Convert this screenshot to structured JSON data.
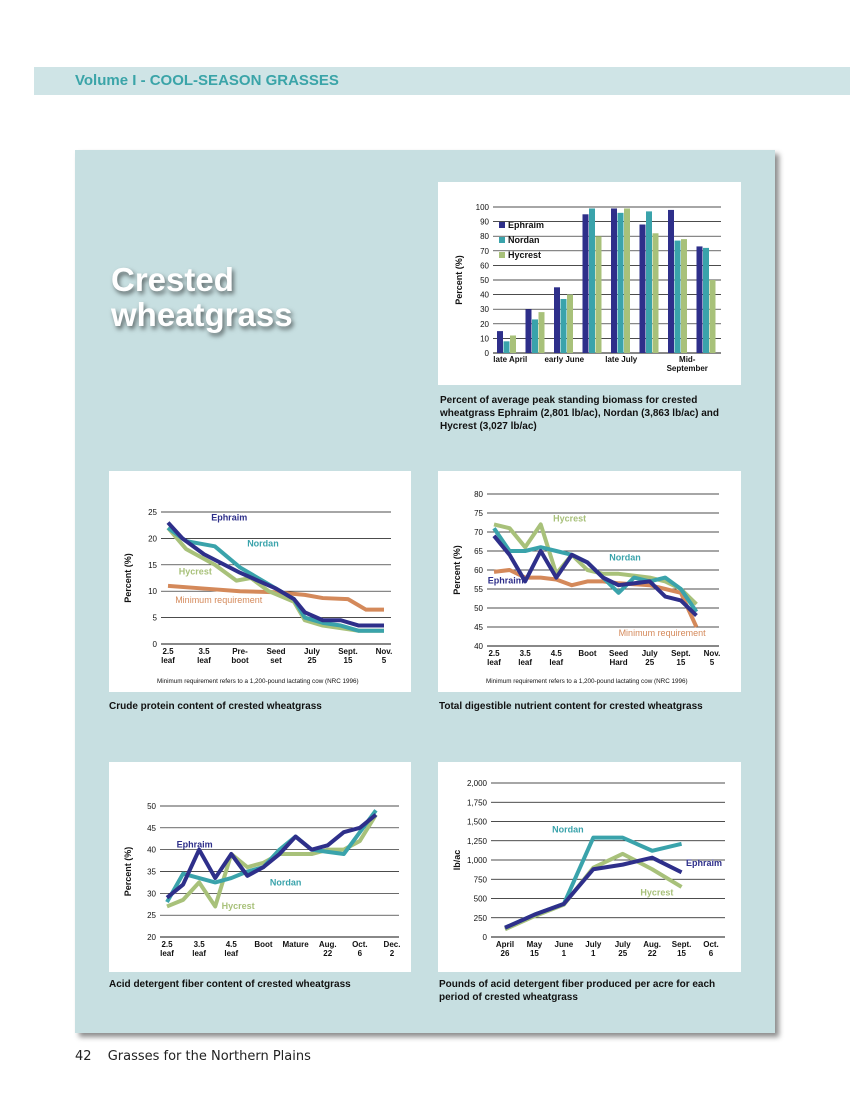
{
  "header": {
    "title": "Volume I - COOL-SEASON GRASSES"
  },
  "panel": {
    "title_line1": "Crested",
    "title_line2": "wheatgrass"
  },
  "footer": {
    "page": "42",
    "book": "Grasses for the Northern Plains"
  },
  "colors": {
    "ephraim": "#2e2f8a",
    "nordan": "#3aa3ab",
    "hycrest": "#a8c17a",
    "minimum": "#d4895a"
  },
  "charts": {
    "biomass": {
      "caption": "Percent of average peak standing biomass for crested wheatgrass Ephraim (2,801 lb/ac), Nordan (3,863 lb/ac) and Hycrest (3,027 lb/ac)"
    },
    "protein": {
      "caption": "Crude protein content of crested wheatgrass",
      "note": "Minimum requirement refers to a 1,200-pound lactating cow (NRC 1996)"
    },
    "tdn": {
      "caption": "Total digestible nutrient content for crested wheatgrass",
      "note": "Minimum requirement refers to a 1,200-pound lactating cow (NRC 1996)"
    },
    "adf": {
      "caption": "Acid detergent fiber content of crested wheatgrass"
    },
    "adf_lbs": {
      "caption": "Pounds of acid detergent fiber produced per acre for each period of crested wheatgrass"
    }
  },
  "chart_data": [
    {
      "id": "biomass",
      "type": "bar",
      "ylabel": "Percent (%)",
      "ylim": [
        0,
        100
      ],
      "yticks": [
        0,
        10,
        20,
        30,
        40,
        50,
        60,
        70,
        80,
        90,
        100
      ],
      "categories": [
        "late April",
        "",
        "early June",
        "",
        "late July",
        "",
        "Mid-\nSeptember",
        ""
      ],
      "legend_position": "top-left",
      "series": [
        {
          "name": "Ephraim",
          "color_key": "ephraim",
          "values": [
            15,
            30,
            45,
            95,
            99,
            88,
            98,
            73
          ]
        },
        {
          "name": "Nordan",
          "color_key": "nordan",
          "values": [
            8,
            23,
            37,
            99,
            96,
            97,
            77,
            72
          ]
        },
        {
          "name": "Hycrest",
          "color_key": "hycrest",
          "values": [
            12,
            28,
            40,
            80,
            99,
            82,
            78,
            50
          ]
        }
      ]
    },
    {
      "id": "protein",
      "type": "line",
      "ylabel": "Percent (%)",
      "ylim": [
        0,
        25
      ],
      "yticks": [
        0,
        5,
        10,
        15,
        20,
        25
      ],
      "categories": [
        "2.5\nleaf",
        "3.5\nleaf",
        "Pre-\nboot",
        "Seed\nset",
        "July\n25",
        "Sept.\n15",
        "Nov.\n5"
      ],
      "series": [
        {
          "name": "Ephraim",
          "color_key": "ephraim",
          "label_at": [
            1.2,
            23.4
          ],
          "values": [
            [
              0,
              23
            ],
            [
              0.4,
              20
            ],
            [
              1,
              17
            ],
            [
              2,
              13.5
            ],
            [
              3,
              10.5
            ],
            [
              3.5,
              8.5
            ],
            [
              3.8,
              6
            ],
            [
              4.3,
              4.5
            ],
            [
              4.8,
              4.5
            ],
            [
              5.3,
              3.5
            ],
            [
              6,
              3.5
            ]
          ]
        },
        {
          "name": "Nordan",
          "color_key": "nordan",
          "label_at": [
            2.2,
            18.5
          ],
          "values": [
            [
              0,
              22
            ],
            [
              0.5,
              19.5
            ],
            [
              1.3,
              18.5
            ],
            [
              2,
              14.5
            ],
            [
              3,
              10.5
            ],
            [
              3.5,
              8.5
            ],
            [
              3.8,
              5
            ],
            [
              4.3,
              4
            ],
            [
              4.8,
              3.5
            ],
            [
              5.3,
              2.5
            ],
            [
              6,
              2.5
            ]
          ]
        },
        {
          "name": "Hycrest",
          "color_key": "hycrest",
          "label_at": [
            0.3,
            13.2
          ],
          "values": [
            [
              0,
              22
            ],
            [
              0.5,
              18
            ],
            [
              1.3,
              15
            ],
            [
              1.9,
              12
            ],
            [
              2.3,
              12.5
            ],
            [
              2.8,
              10
            ],
            [
              3.5,
              8
            ],
            [
              3.8,
              4.5
            ],
            [
              4.3,
              3.5
            ],
            [
              4.8,
              3
            ],
            [
              5.3,
              2.5
            ],
            [
              6,
              2.5
            ]
          ]
        },
        {
          "name": "Minimum requirement",
          "color_key": "minimum",
          "label_at": [
            0.2,
            7.8
          ],
          "values": [
            [
              0,
              11
            ],
            [
              1,
              10.5
            ],
            [
              2,
              10
            ],
            [
              3,
              9.8
            ],
            [
              3.8,
              9.3
            ],
            [
              4.3,
              8.7
            ],
            [
              5,
              8.5
            ],
            [
              5.5,
              6.5
            ],
            [
              6,
              6.5
            ]
          ]
        }
      ]
    },
    {
      "id": "tdn",
      "type": "line",
      "ylabel": "Percent (%)",
      "ylim": [
        40,
        80
      ],
      "yticks": [
        40,
        45,
        50,
        55,
        60,
        65,
        70,
        75,
        80
      ],
      "categories": [
        "2.5\nleaf",
        "3.5\nleaf",
        "4.5\nleaf",
        "Boot",
        "Seed\nHard",
        "July\n25",
        "Sept.\n15",
        "Nov.\n5"
      ],
      "series": [
        {
          "name": "Ephraim",
          "color_key": "ephraim",
          "label_at": [
            -0.2,
            56.5
          ],
          "values": [
            [
              0,
              69
            ],
            [
              0.5,
              64
            ],
            [
              1,
              57
            ],
            [
              1.5,
              65
            ],
            [
              2,
              58
            ],
            [
              2.5,
              64
            ],
            [
              3,
              62
            ],
            [
              3.5,
              58
            ],
            [
              4,
              56
            ],
            [
              5,
              57
            ],
            [
              5.5,
              53
            ],
            [
              6,
              52
            ],
            [
              6.5,
              48
            ]
          ]
        },
        {
          "name": "Nordan",
          "color_key": "nordan",
          "label_at": [
            3.7,
            62.5
          ],
          "values": [
            [
              0,
              71
            ],
            [
              0.5,
              65
            ],
            [
              1,
              65
            ],
            [
              1.5,
              66
            ],
            [
              2,
              65
            ],
            [
              2.5,
              64
            ],
            [
              3,
              62
            ],
            [
              3.5,
              58
            ],
            [
              4,
              54
            ],
            [
              4.5,
              58
            ],
            [
              5,
              57
            ],
            [
              5.5,
              58
            ],
            [
              6,
              55
            ],
            [
              6.5,
              49
            ]
          ]
        },
        {
          "name": "Hycrest",
          "color_key": "hycrest",
          "label_at": [
            1.9,
            72.8
          ],
          "values": [
            [
              0,
              72
            ],
            [
              0.5,
              71
            ],
            [
              1,
              66
            ],
            [
              1.5,
              72
            ],
            [
              2,
              59
            ],
            [
              2.5,
              64
            ],
            [
              3,
              60
            ],
            [
              3.5,
              59
            ],
            [
              4,
              59
            ],
            [
              5,
              58
            ],
            [
              5.5,
              57
            ],
            [
              6,
              55
            ],
            [
              6.5,
              51
            ]
          ]
        },
        {
          "name": "Minimum requirement",
          "color_key": "minimum",
          "label_at": [
            4.0,
            42.6
          ],
          "values": [
            [
              0,
              59.5
            ],
            [
              0.5,
              60
            ],
            [
              1,
              58
            ],
            [
              1.5,
              58
            ],
            [
              2,
              57.5
            ],
            [
              2.5,
              56
            ],
            [
              3,
              57
            ],
            [
              3.5,
              57
            ],
            [
              4,
              56.5
            ],
            [
              5,
              56
            ],
            [
              5.5,
              55
            ],
            [
              6,
              54
            ],
            [
              6.5,
              45
            ]
          ]
        }
      ]
    },
    {
      "id": "adf",
      "type": "line",
      "ylabel": "Percent (%)",
      "ylim": [
        20,
        50
      ],
      "yticks": [
        20,
        25,
        30,
        35,
        40,
        45,
        50
      ],
      "categories": [
        "2.5\nleaf",
        "3.5\nleaf",
        "4.5\nleaf",
        "Boot",
        "Mature",
        "Aug.\n22",
        "Oct.\n6",
        "Dec.\n2"
      ],
      "series": [
        {
          "name": "Ephraim",
          "color_key": "ephraim",
          "label_at": [
            0.3,
            40.5
          ],
          "values": [
            [
              0,
              29
            ],
            [
              0.5,
              32
            ],
            [
              1,
              40
            ],
            [
              1.5,
              33.5
            ],
            [
              2,
              39
            ],
            [
              2.5,
              34
            ],
            [
              3,
              36
            ],
            [
              3.5,
              39
            ],
            [
              4,
              43
            ],
            [
              4.5,
              40
            ],
            [
              5,
              41
            ],
            [
              5.5,
              44
            ],
            [
              6,
              45
            ],
            [
              6.5,
              48
            ]
          ]
        },
        {
          "name": "Nordan",
          "color_key": "nordan",
          "label_at": [
            3.2,
            31.8
          ],
          "values": [
            [
              0,
              28
            ],
            [
              0.5,
              34.5
            ],
            [
              1,
              33.5
            ],
            [
              1.5,
              32.5
            ],
            [
              2,
              33.5
            ],
            [
              2.5,
              35
            ],
            [
              3,
              36
            ],
            [
              3.5,
              40
            ],
            [
              4,
              43
            ],
            [
              4.5,
              40
            ],
            [
              5,
              39.5
            ],
            [
              5.5,
              39
            ],
            [
              6,
              44
            ],
            [
              6.5,
              49
            ]
          ]
        },
        {
          "name": "Hycrest",
          "color_key": "hycrest",
          "label_at": [
            1.7,
            26.4
          ],
          "values": [
            [
              0,
              27
            ],
            [
              0.5,
              28.5
            ],
            [
              1,
              32.5
            ],
            [
              1.5,
              27
            ],
            [
              2,
              39
            ],
            [
              2.5,
              36
            ],
            [
              3,
              37
            ],
            [
              3.5,
              39
            ],
            [
              4,
              39
            ],
            [
              4.5,
              39
            ],
            [
              5,
              40
            ],
            [
              5.5,
              40
            ],
            [
              6,
              42
            ],
            [
              6.5,
              48
            ]
          ]
        }
      ]
    },
    {
      "id": "adf_lbs",
      "type": "line",
      "ylabel": "lb/ac",
      "ylim": [
        0,
        2000
      ],
      "yticks": [
        0,
        250,
        500,
        750,
        1000,
        1250,
        1500,
        1750,
        2000
      ],
      "ytick_labels": [
        "0",
        "250",
        "500",
        "750",
        "1,000",
        "1,250",
        "1,500",
        "1,750",
        "2,000"
      ],
      "categories": [
        "April\n26",
        "May\n15",
        "June\n1",
        "July\n1",
        "July\n25",
        "Aug.\n22",
        "Sept.\n15",
        "Oct.\n6"
      ],
      "series": [
        {
          "name": "Ephraim",
          "color_key": "ephraim",
          "label_at": [
            6.15,
            920
          ],
          "values": [
            [
              0,
              120
            ],
            [
              1,
              290
            ],
            [
              2,
              430
            ],
            [
              3,
              880
            ],
            [
              4,
              940
            ],
            [
              5,
              1030
            ],
            [
              6,
              840
            ]
          ]
        },
        {
          "name": "Nordan",
          "color_key": "nordan",
          "label_at": [
            1.6,
            1360
          ],
          "values": [
            [
              0,
              120
            ],
            [
              1,
              290
            ],
            [
              2,
              430
            ],
            [
              3,
              1290
            ],
            [
              4,
              1290
            ],
            [
              5,
              1120
            ],
            [
              6,
              1210
            ]
          ]
        },
        {
          "name": "Hycrest",
          "color_key": "hycrest",
          "label_at": [
            4.6,
            540
          ],
          "values": [
            [
              0,
              100
            ],
            [
              1,
              270
            ],
            [
              2,
              420
            ],
            [
              3,
              900
            ],
            [
              4,
              1080
            ],
            [
              5,
              880
            ],
            [
              6,
              650
            ]
          ]
        }
      ]
    }
  ]
}
